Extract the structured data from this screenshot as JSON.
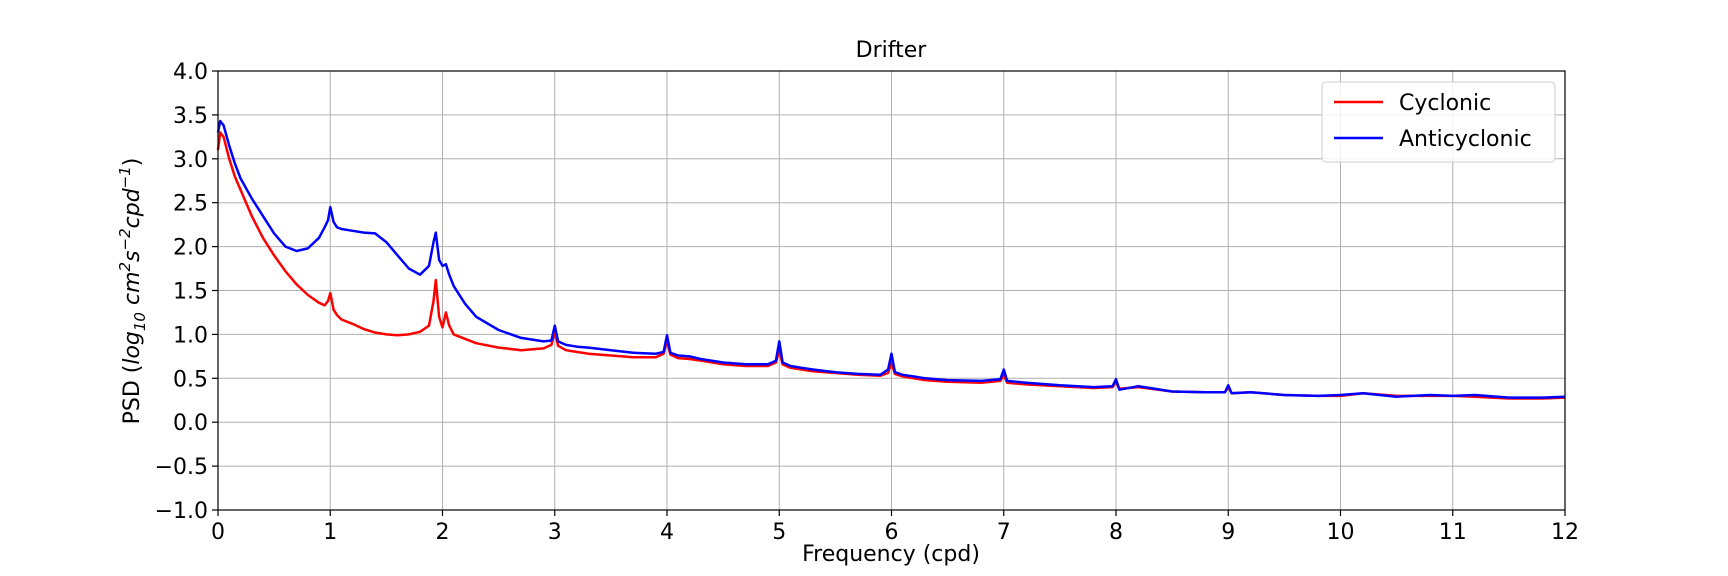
{
  "chart_data": {
    "type": "line",
    "title": "Drifter",
    "xlabel": "Frequency (cpd)",
    "ylabel": "PSD (log10 cm2 s-2 cpd-1)",
    "ylabel_parts": {
      "prefix": "PSD (",
      "log": "log",
      "log_sub": "10",
      "cm": " cm",
      "cm_sup": "2",
      "s": "s",
      "s_sup": "−2",
      "cpd": "cpd",
      "cpd_sup": "−1",
      "suffix": ")"
    },
    "xlim": [
      0,
      12
    ],
    "ylim": [
      -1.0,
      4.0
    ],
    "xticks": [
      0,
      1,
      2,
      3,
      4,
      5,
      6,
      7,
      8,
      9,
      10,
      11,
      12
    ],
    "xtick_labels": [
      "0",
      "1",
      "2",
      "3",
      "4",
      "5",
      "6",
      "7",
      "8",
      "9",
      "10",
      "11",
      "12"
    ],
    "yticks": [
      -1.0,
      -0.5,
      0.0,
      0.5,
      1.0,
      1.5,
      2.0,
      2.5,
      3.0,
      3.5,
      4.0
    ],
    "ytick_labels": [
      "−1.0",
      "−0.5",
      "0.0",
      "0.5",
      "1.0",
      "1.5",
      "2.0",
      "2.5",
      "3.0",
      "3.5",
      "4.0"
    ],
    "grid": true,
    "legend_position": "top-right",
    "series": [
      {
        "name": "Cyclonic",
        "color": "#ff0000",
        "x": [
          0,
          0.02,
          0.05,
          0.1,
          0.15,
          0.2,
          0.3,
          0.4,
          0.5,
          0.6,
          0.7,
          0.8,
          0.9,
          0.95,
          0.98,
          1.0,
          1.03,
          1.06,
          1.1,
          1.2,
          1.3,
          1.4,
          1.5,
          1.6,
          1.7,
          1.8,
          1.88,
          1.92,
          1.94,
          1.97,
          2.0,
          2.03,
          2.06,
          2.1,
          2.2,
          2.3,
          2.5,
          2.7,
          2.9,
          2.97,
          3.0,
          3.03,
          3.1,
          3.2,
          3.3,
          3.5,
          3.7,
          3.9,
          3.97,
          4.0,
          4.03,
          4.1,
          4.2,
          4.3,
          4.5,
          4.7,
          4.9,
          4.97,
          5.0,
          5.03,
          5.1,
          5.2,
          5.3,
          5.5,
          5.7,
          5.9,
          5.97,
          6.0,
          6.03,
          6.1,
          6.2,
          6.3,
          6.5,
          6.8,
          6.97,
          7.0,
          7.03,
          7.2,
          7.5,
          7.8,
          7.97,
          8.0,
          8.03,
          8.2,
          8.5,
          8.8,
          8.97,
          9.0,
          9.03,
          9.2,
          9.5,
          9.8,
          10.0,
          10.2,
          10.5,
          10.8,
          11.0,
          11.2,
          11.5,
          11.8,
          12.0
        ],
        "y": [
          3.1,
          3.3,
          3.25,
          3.0,
          2.8,
          2.65,
          2.35,
          2.1,
          1.9,
          1.72,
          1.57,
          1.45,
          1.36,
          1.33,
          1.38,
          1.47,
          1.28,
          1.22,
          1.17,
          1.12,
          1.06,
          1.02,
          1.0,
          0.99,
          1.0,
          1.03,
          1.1,
          1.38,
          1.62,
          1.2,
          1.08,
          1.25,
          1.1,
          1.0,
          0.95,
          0.9,
          0.85,
          0.82,
          0.84,
          0.88,
          1.03,
          0.87,
          0.82,
          0.8,
          0.78,
          0.76,
          0.74,
          0.74,
          0.78,
          0.93,
          0.77,
          0.73,
          0.72,
          0.7,
          0.66,
          0.64,
          0.64,
          0.68,
          0.82,
          0.66,
          0.62,
          0.6,
          0.58,
          0.56,
          0.54,
          0.53,
          0.56,
          0.68,
          0.55,
          0.52,
          0.5,
          0.48,
          0.46,
          0.45,
          0.47,
          0.54,
          0.45,
          0.43,
          0.41,
          0.39,
          0.4,
          0.46,
          0.38,
          0.4,
          0.35,
          0.34,
          0.34,
          0.4,
          0.33,
          0.34,
          0.31,
          0.3,
          0.3,
          0.33,
          0.3,
          0.3,
          0.3,
          0.29,
          0.27,
          0.27,
          0.28
        ]
      },
      {
        "name": "Anticyclonic",
        "color": "#0000ff",
        "x": [
          0,
          0.02,
          0.05,
          0.1,
          0.15,
          0.2,
          0.3,
          0.4,
          0.5,
          0.6,
          0.7,
          0.8,
          0.9,
          0.95,
          0.98,
          1.0,
          1.03,
          1.06,
          1.1,
          1.2,
          1.3,
          1.4,
          1.5,
          1.6,
          1.7,
          1.8,
          1.88,
          1.92,
          1.94,
          1.97,
          2.0,
          2.03,
          2.06,
          2.1,
          2.2,
          2.3,
          2.5,
          2.7,
          2.9,
          2.97,
          3.0,
          3.03,
          3.1,
          3.2,
          3.3,
          3.5,
          3.7,
          3.9,
          3.97,
          4.0,
          4.03,
          4.1,
          4.2,
          4.3,
          4.5,
          4.7,
          4.9,
          4.97,
          5.0,
          5.03,
          5.1,
          5.2,
          5.3,
          5.5,
          5.7,
          5.9,
          5.97,
          6.0,
          6.03,
          6.1,
          6.2,
          6.3,
          6.5,
          6.8,
          6.97,
          7.0,
          7.03,
          7.2,
          7.5,
          7.8,
          7.97,
          8.0,
          8.03,
          8.2,
          8.5,
          8.8,
          8.97,
          9.0,
          9.03,
          9.2,
          9.5,
          9.8,
          10.0,
          10.2,
          10.5,
          10.8,
          11.0,
          11.2,
          11.5,
          11.8,
          12.0
        ],
        "y": [
          3.3,
          3.43,
          3.38,
          3.15,
          2.95,
          2.78,
          2.55,
          2.35,
          2.15,
          2.0,
          1.95,
          1.98,
          2.1,
          2.22,
          2.3,
          2.45,
          2.28,
          2.22,
          2.2,
          2.18,
          2.16,
          2.15,
          2.05,
          1.9,
          1.75,
          1.68,
          1.78,
          2.05,
          2.16,
          1.85,
          1.78,
          1.8,
          1.68,
          1.55,
          1.35,
          1.2,
          1.05,
          0.96,
          0.92,
          0.93,
          1.1,
          0.92,
          0.88,
          0.86,
          0.85,
          0.82,
          0.79,
          0.78,
          0.8,
          0.99,
          0.79,
          0.76,
          0.75,
          0.72,
          0.68,
          0.66,
          0.66,
          0.7,
          0.92,
          0.68,
          0.64,
          0.62,
          0.6,
          0.57,
          0.55,
          0.54,
          0.6,
          0.78,
          0.57,
          0.54,
          0.52,
          0.5,
          0.48,
          0.47,
          0.49,
          0.6,
          0.47,
          0.45,
          0.42,
          0.4,
          0.41,
          0.49,
          0.37,
          0.41,
          0.35,
          0.34,
          0.34,
          0.42,
          0.33,
          0.34,
          0.31,
          0.3,
          0.31,
          0.33,
          0.29,
          0.31,
          0.3,
          0.31,
          0.28,
          0.28,
          0.29
        ]
      }
    ]
  }
}
